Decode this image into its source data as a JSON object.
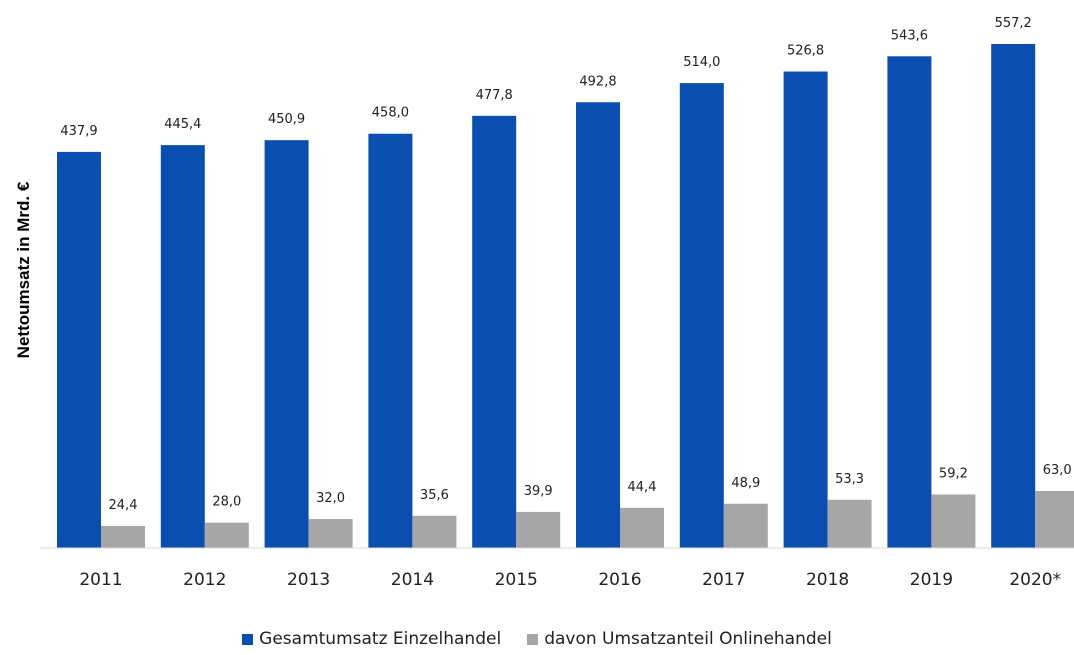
{
  "chart_data": {
    "type": "bar",
    "ylabel": "Nettoumsatz in Mrd. €",
    "xlabel": "",
    "categories": [
      "2011",
      "2012",
      "2013",
      "2014",
      "2015",
      "2016",
      "2017",
      "2018",
      "2019",
      "2020*"
    ],
    "series": [
      {
        "name": "Gesamtumsatz Einzelhandel",
        "color": "#0a4fb0",
        "values": [
          437.9,
          445.4,
          450.9,
          458.0,
          477.8,
          492.8,
          514.0,
          526.8,
          543.6,
          557.2
        ],
        "labels": [
          "437,9",
          "445,4",
          "450,9",
          "458,0",
          "477,8",
          "492,8",
          "514,0",
          "526,8",
          "543,6",
          "557,2"
        ]
      },
      {
        "name": "davon Umsatzanteil Onlinehandel",
        "color": "#a6a6a6",
        "values": [
          24.4,
          28.0,
          32.0,
          35.6,
          39.9,
          44.4,
          48.9,
          53.3,
          59.2,
          63.0
        ],
        "labels": [
          "24,4",
          "28,0",
          "32,0",
          "35,6",
          "39,9",
          "44,4",
          "48,9",
          "53,3",
          "59,2",
          "63,0"
        ]
      }
    ],
    "ylim": [
      0,
      557.2
    ],
    "grid": false,
    "legend_position": "bottom"
  }
}
